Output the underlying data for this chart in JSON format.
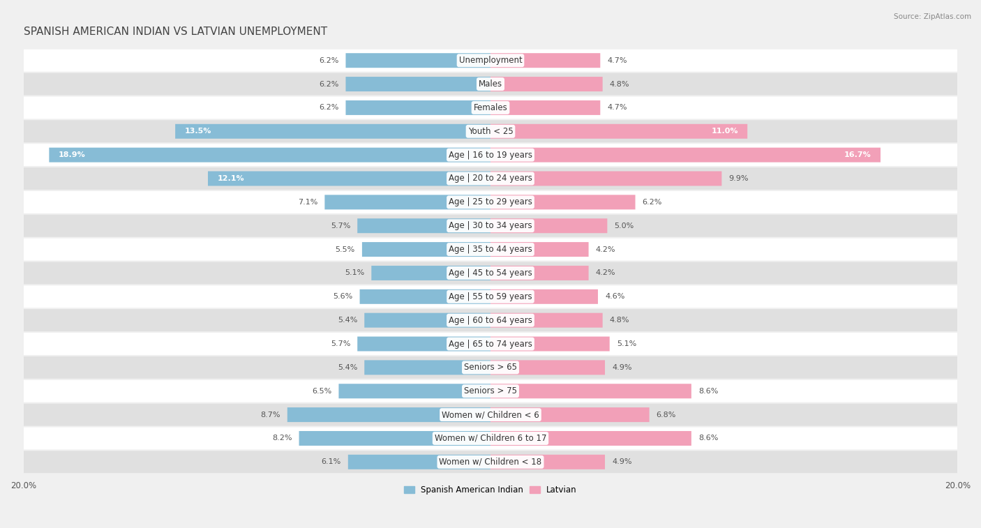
{
  "title": "SPANISH AMERICAN INDIAN VS LATVIAN UNEMPLOYMENT",
  "source": "Source: ZipAtlas.com",
  "categories": [
    "Unemployment",
    "Males",
    "Females",
    "Youth < 25",
    "Age | 16 to 19 years",
    "Age | 20 to 24 years",
    "Age | 25 to 29 years",
    "Age | 30 to 34 years",
    "Age | 35 to 44 years",
    "Age | 45 to 54 years",
    "Age | 55 to 59 years",
    "Age | 60 to 64 years",
    "Age | 65 to 74 years",
    "Seniors > 65",
    "Seniors > 75",
    "Women w/ Children < 6",
    "Women w/ Children 6 to 17",
    "Women w/ Children < 18"
  ],
  "left_values": [
    6.2,
    6.2,
    6.2,
    13.5,
    18.9,
    12.1,
    7.1,
    5.7,
    5.5,
    5.1,
    5.6,
    5.4,
    5.7,
    5.4,
    6.5,
    8.7,
    8.2,
    6.1
  ],
  "right_values": [
    4.7,
    4.8,
    4.7,
    11.0,
    16.7,
    9.9,
    6.2,
    5.0,
    4.2,
    4.2,
    4.6,
    4.8,
    5.1,
    4.9,
    8.6,
    6.8,
    8.6,
    4.9
  ],
  "left_color": "#87bcd6",
  "right_color": "#f2a0b8",
  "left_label": "Spanish American Indian",
  "right_label": "Latvian",
  "xlim": 20.0,
  "bar_height": 0.62,
  "background_color": "#f0f0f0",
  "row_color_light": "#ffffff",
  "row_color_dark": "#e0e0e0",
  "title_fontsize": 11,
  "label_fontsize": 8.5,
  "value_fontsize": 8,
  "axis_fontsize": 8.5,
  "figsize": [
    14.06,
    7.57
  ],
  "dpi": 100
}
